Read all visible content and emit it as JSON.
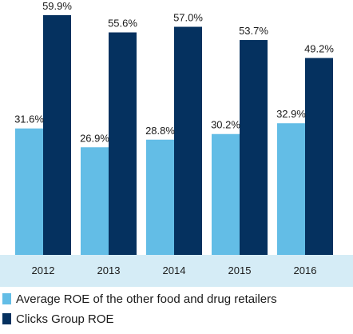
{
  "chart_data": {
    "type": "bar",
    "categories": [
      "2012",
      "2013",
      "2014",
      "2015",
      "2016"
    ],
    "series": [
      {
        "name": "Average ROE of the other food and drug retailers",
        "values": [
          31.6,
          26.9,
          28.8,
          30.2,
          32.9
        ],
        "labels": [
          "31.6%",
          "26.9%",
          "28.8%",
          "30.2%",
          "32.9%"
        ],
        "color": "#63bde6"
      },
      {
        "name": "Clicks Group ROE",
        "values": [
          59.9,
          55.6,
          57.0,
          53.7,
          49.2
        ],
        "labels": [
          "59.9%",
          "55.6%",
          "57.0%",
          "53.7%",
          "49.2%"
        ],
        "color": "#05315f"
      }
    ],
    "ylim": [
      0,
      60
    ],
    "grid": false,
    "legend_placement": "bottom-left",
    "axis_band_color": "#d5ecf6"
  }
}
